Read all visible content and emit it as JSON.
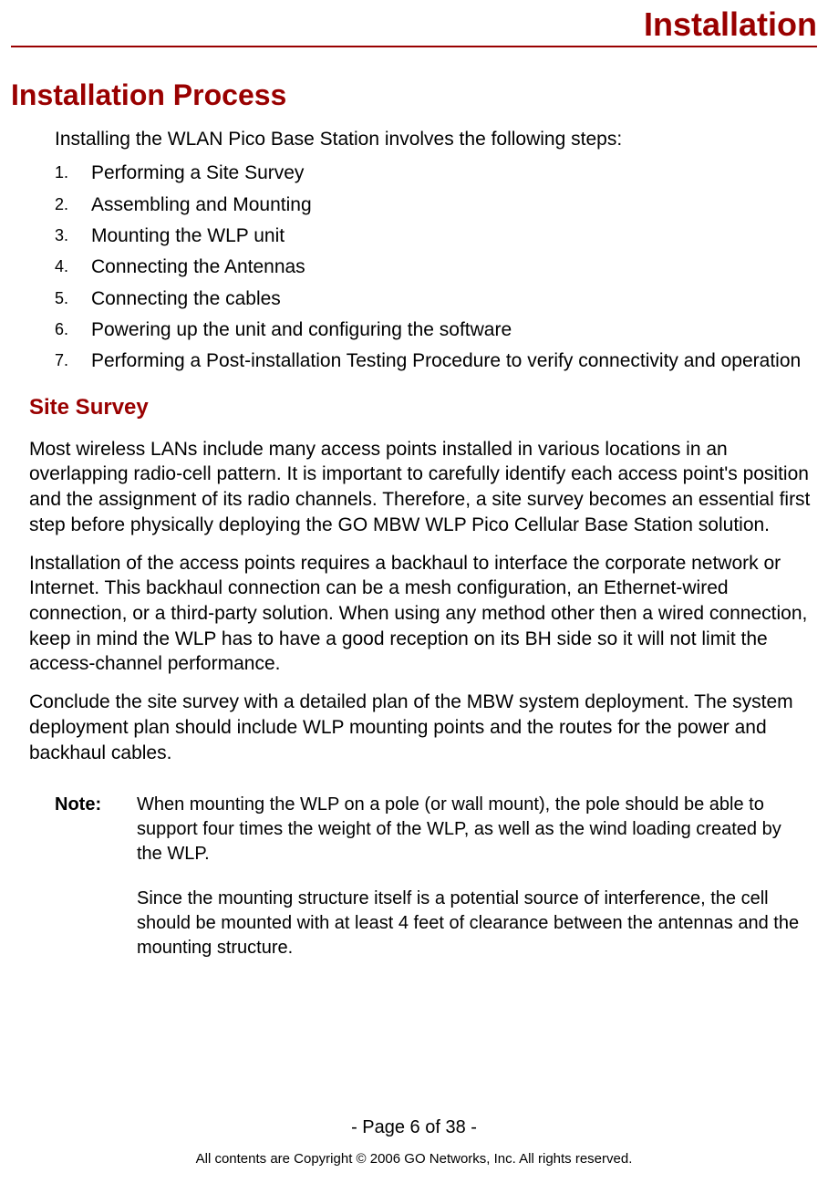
{
  "header": {
    "title": "Installation",
    "title_color": "#990000",
    "rule_color": "#990000"
  },
  "section_title": "Installation Process",
  "intro": "Installing the WLAN Pico Base Station involves the following steps:",
  "steps": [
    "Performing a Site Survey",
    "Assembling and Mounting",
    "Mounting the WLP unit",
    "Connecting the Antennas",
    "Connecting the cables",
    "Powering up the unit and configuring the software",
    "Performing a Post-installation Testing Procedure to verify connectivity and operation"
  ],
  "subsection_title": "Site Survey",
  "paragraphs": [
    "Most wireless LANs include many access points installed in various locations in an overlapping radio-cell pattern. It is important to carefully identify each access point's position and the assignment of its radio channels. Therefore, a site survey becomes an essential first step before physically deploying the GO MBW WLP Pico Cellular Base Station solution.",
    "Installation of the access points requires a backhaul to interface the corporate network or Internet. This backhaul connection can be a mesh configuration, an Ethernet-wired connection, or a third-party solution. When using any method other then a wired connection, keep in mind the WLP has to have a good reception on its BH side so it will not limit the access-channel performance.",
    "Conclude the site survey with a detailed plan of the MBW system deployment. The system deployment plan should include WLP mounting points and the routes for the power and backhaul cables."
  ],
  "note": {
    "label": "Note:",
    "paragraphs": [
      "When mounting the WLP on a pole (or wall mount), the pole should be able to support four times the weight of the WLP, as well as the wind loading created by the WLP.",
      "Since the mounting structure itself is a potential source of interference, the cell should be mounted with at least 4 feet of clearance between the antennas and the mounting structure."
    ]
  },
  "footer": {
    "page": "- Page 6 of 38 -",
    "copyright": "All contents are Copyright © 2006 GO Networks, Inc. All rights reserved."
  },
  "styling": {
    "heading_color": "#990000",
    "body_text_color": "#000000",
    "background_color": "#ffffff",
    "font_family": "Verdana",
    "header_title_fontsize": 36,
    "h1_fontsize": 32,
    "h2_fontsize": 24,
    "body_fontsize": 21,
    "note_fontsize": 20,
    "footer_page_fontsize": 20,
    "footer_copy_fontsize": 15
  }
}
